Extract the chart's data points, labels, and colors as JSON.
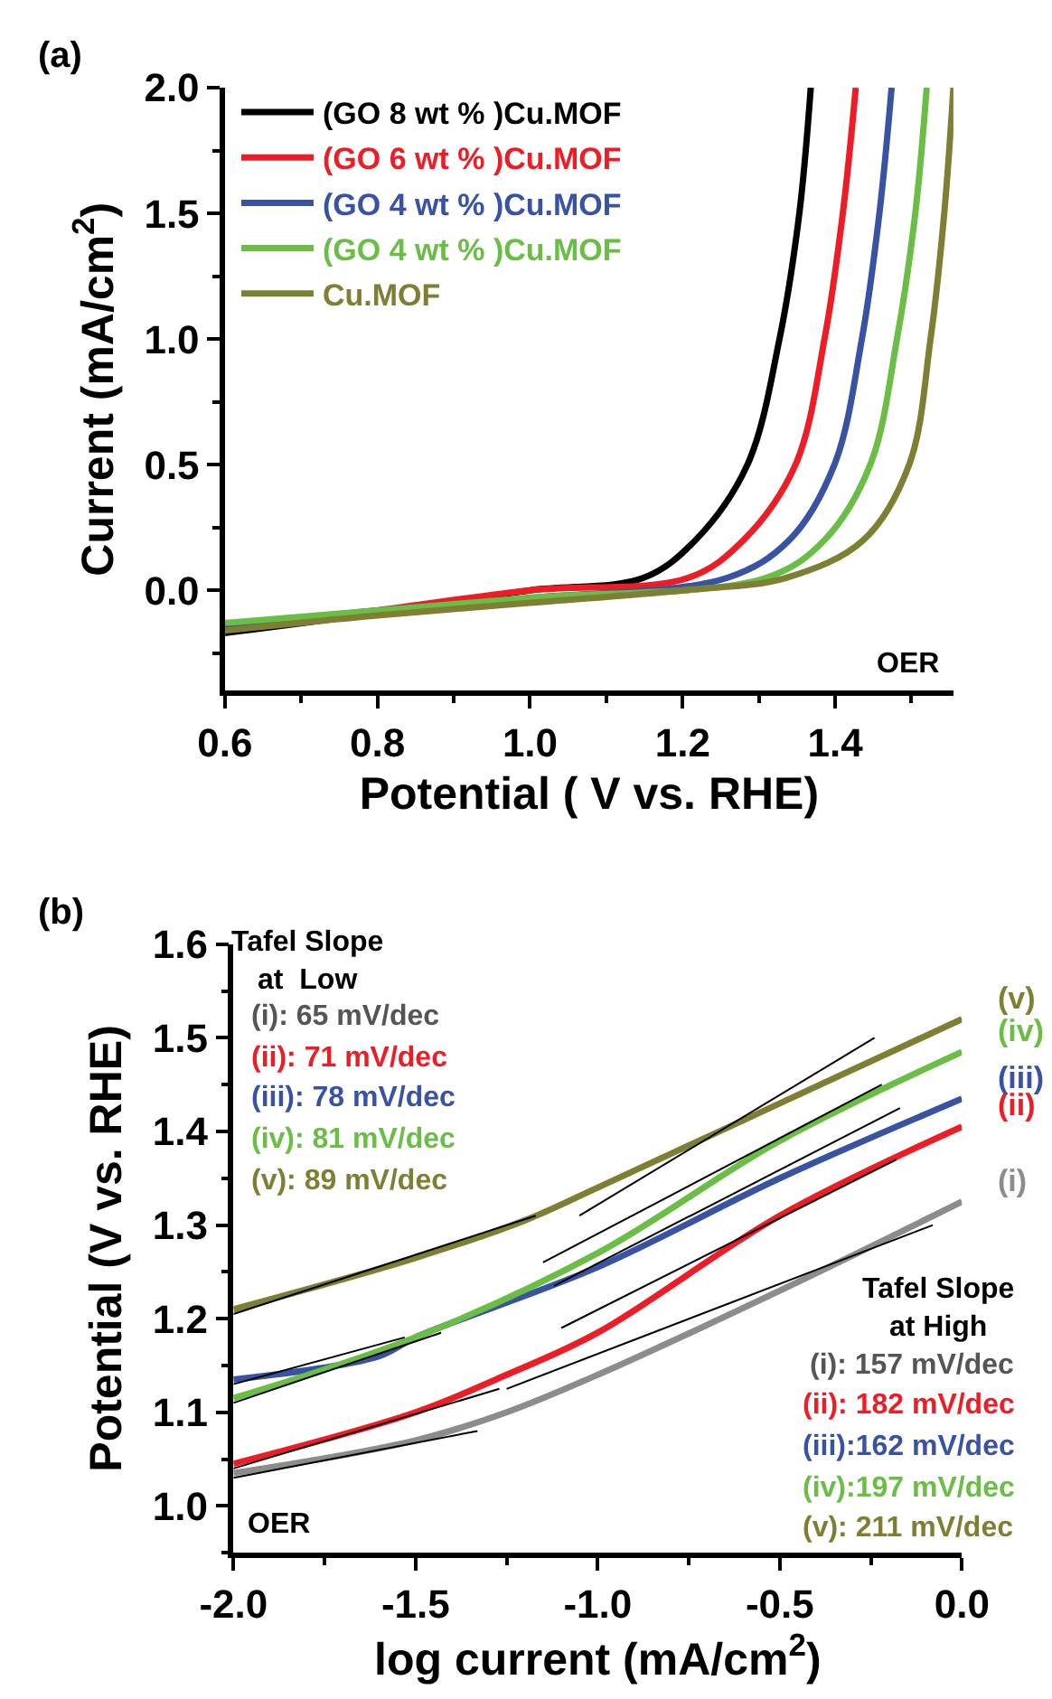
{
  "chart_data": [
    {
      "type": "line",
      "xlabel": "Potential ( V vs. RHE)",
      "ylabel": "Current (mA/cm$^{2}$)",
      "xlim": [
        0.6,
        1.555
      ],
      "xticks": [
        0.6,
        0.8,
        {
          "value": 1.0,
          "label": "1.0"
        },
        1.2,
        1.4
      ],
      "ylim": [
        -0.4,
        2.0
      ],
      "yticks": [
        {
          "value": 0.0,
          "label": "0.0"
        },
        0.5,
        {
          "value": 1.0,
          "label": "1.0"
        },
        1.5,
        {
          "value": 2.0,
          "label": "2.0"
        }
      ],
      "legend": "top left",
      "annotations": [
        "(a)",
        "OER"
      ],
      "series": [
        {
          "name": "(GO 8 wt % )Cu.MOF",
          "color": "#000000",
          "x": [
            0.6,
            0.8,
            1.0,
            1.149,
            1.217,
            1.285,
            1.327,
            1.353,
            1.368
          ],
          "values": [
            -0.17,
            -0.09,
            0.0,
            0.05,
            0.2,
            0.5,
            1.0,
            1.5,
            2.0
          ]
        },
        {
          "name": "(GO 6 wt % )Cu.MOF",
          "color": "#ee1c25",
          "x": [
            0.6,
            0.8,
            1.0,
            1.208,
            1.28,
            1.348,
            1.386,
            1.41,
            1.427
          ],
          "values": [
            -0.15,
            -0.08,
            0.0,
            0.05,
            0.2,
            0.5,
            1.0,
            1.5,
            2.0
          ]
        },
        {
          "name": "(GO 4 wt % )Cu.MOF",
          "color": "#3953a4",
          "x": [
            0.6,
            0.8,
            1.0,
            1.259,
            1.34,
            1.399,
            1.435,
            1.458,
            1.474
          ],
          "values": [
            -0.14,
            -0.08,
            -0.03,
            0.05,
            0.2,
            0.5,
            1.0,
            1.5,
            2.0
          ]
        },
        {
          "name": "(GO 4 wt % )Cu.MOF",
          "color": "#6abd45",
          "x": [
            0.6,
            0.8,
            1.0,
            1.31,
            1.386,
            1.446,
            1.481,
            1.505,
            1.52
          ],
          "values": [
            -0.13,
            -0.08,
            -0.03,
            0.05,
            0.2,
            0.5,
            1.0,
            1.5,
            2.0
          ]
        },
        {
          "name": "Cu.MOF",
          "color": "#7f7f33",
          "x": [
            0.6,
            0.8,
            1.0,
            1.2,
            1.336,
            1.437,
            1.497,
            1.525,
            1.543,
            1.555
          ],
          "values": [
            -0.16,
            -0.1,
            -0.05,
            0.0,
            0.05,
            0.2,
            0.5,
            1.0,
            1.5,
            2.0
          ]
        }
      ]
    },
    {
      "type": "line",
      "xlabel": "log current (mA/cm$^{2}$)",
      "ylabel": "Potential (V vs. RHE)",
      "xlim": [
        -2.0,
        0.0
      ],
      "xticks": [
        {
          "value": -2.0,
          "label": "-2.0"
        },
        -1.5,
        {
          "value": -1.0,
          "label": "-1.0"
        },
        -0.5,
        {
          "value": 0.0,
          "label": "0.0"
        }
      ],
      "ylim": [
        0.95,
        1.6
      ],
      "yticks": [
        {
          "value": 1.0,
          "label": "1.0"
        },
        1.1,
        1.2,
        1.3,
        1.4,
        1.5,
        1.6
      ],
      "annotations": [
        "(b)",
        "Tafel Slope\nat  Low",
        "(i): 65 mV/dec",
        "(ii): 71 mV/dec",
        "(iii): 78 mV/dec",
        "(iv): 81 mV/dec",
        "(v): 89 mV/dec",
        "Tafel Slope\nat High",
        "(i): 157 mV/dec",
        "(ii): 182 mV/dec",
        "(iii):162 mV/dec",
        "(iv):197 mV/dec",
        "(v): 211 mV/dec",
        "OER"
      ],
      "series": [
        {
          "name": "(i)",
          "color": "#8c8c8c",
          "x": [
            -2.0,
            -1.5,
            -1.25,
            -1.0,
            -0.5,
            0.0
          ],
          "values": [
            1.035,
            1.07,
            1.1,
            1.14,
            1.23,
            1.325
          ]
        },
        {
          "name": "(ii)",
          "color": "#ee1c25",
          "x": [
            -2.0,
            -1.5,
            -1.25,
            -1.0,
            -0.5,
            0.0
          ],
          "values": [
            1.045,
            1.1,
            1.14,
            1.185,
            1.31,
            1.405
          ]
        },
        {
          "name": "(iii)",
          "color": "#3953a4",
          "x": [
            -2.0,
            -1.6,
            -1.5,
            -1.0,
            -0.5,
            0.0
          ],
          "values": [
            1.135,
            1.16,
            1.18,
            1.255,
            1.35,
            1.435
          ]
        },
        {
          "name": "(iv)",
          "color": "#6abd45",
          "x": [
            -2.0,
            -1.5,
            -1.0,
            -0.5,
            0.0
          ],
          "values": [
            1.115,
            1.18,
            1.27,
            1.39,
            1.485
          ]
        },
        {
          "name": "(v)",
          "color": "#7f7f33",
          "x": [
            -2.0,
            -1.5,
            -1.2,
            -1.0,
            -0.5,
            0.0
          ],
          "values": [
            1.21,
            1.265,
            1.305,
            1.34,
            1.43,
            1.52
          ]
        },
        {
          "color": "#000000",
          "x": [
            -2.0,
            -1.33
          ],
          "values": [
            1.03,
            1.08
          ]
        },
        {
          "color": "#000000",
          "x": [
            -1.25,
            -0.08
          ],
          "values": [
            1.125,
            1.3
          ]
        },
        {
          "color": "#000000",
          "x": [
            -2.0,
            -1.27
          ],
          "values": [
            1.04,
            1.125
          ]
        },
        {
          "color": "#000000",
          "x": [
            -1.1,
            -0.18
          ],
          "values": [
            1.19,
            1.37
          ]
        },
        {
          "color": "#000000",
          "x": [
            -2.0,
            -1.53
          ],
          "values": [
            1.13,
            1.18
          ]
        },
        {
          "color": "#000000",
          "x": [
            -1.12,
            -0.17
          ],
          "values": [
            1.235,
            1.425
          ]
        },
        {
          "color": "#000000",
          "x": [
            -2.0,
            -1.43
          ],
          "values": [
            1.11,
            1.185
          ]
        },
        {
          "color": "#000000",
          "x": [
            -1.15,
            -0.22
          ],
          "values": [
            1.26,
            1.45
          ]
        },
        {
          "color": "#000000",
          "x": [
            -2.0,
            -1.17
          ],
          "values": [
            1.205,
            1.31
          ]
        },
        {
          "color": "#000000",
          "x": [
            -1.05,
            -0.24
          ],
          "values": [
            1.31,
            1.5
          ]
        }
      ]
    }
  ]
}
